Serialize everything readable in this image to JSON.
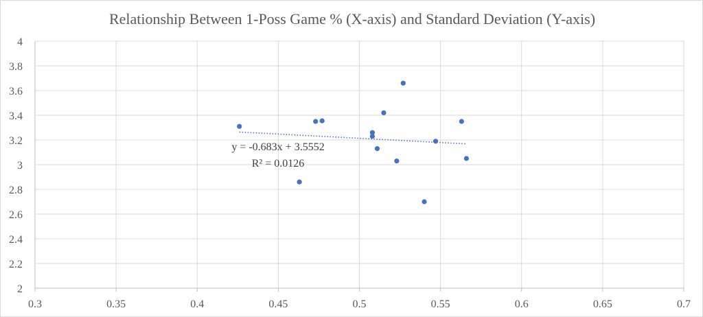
{
  "chart_data": {
    "type": "scatter",
    "title": "Relationship Between 1-Poss Game % (X-axis) and Standard Deviation (Y-axis)",
    "xlabel": "",
    "ylabel": "",
    "xlim": [
      0.3,
      0.7
    ],
    "ylim": [
      2,
      4
    ],
    "x_ticks": [
      "0.3",
      "0.35",
      "0.4",
      "0.45",
      "0.5",
      "0.55",
      "0.6",
      "0.65",
      "0.7"
    ],
    "y_ticks": [
      "2",
      "2.2",
      "2.4",
      "2.6",
      "2.8",
      "3",
      "3.2",
      "3.4",
      "3.6",
      "3.8",
      "4"
    ],
    "grid": true,
    "legend": "none",
    "marker_color": "#4472C4",
    "trendline_color": "#4472C4",
    "series": [
      {
        "points": [
          {
            "x": 0.426,
            "y": 3.31
          },
          {
            "x": 0.463,
            "y": 2.86
          },
          {
            "x": 0.473,
            "y": 3.35
          },
          {
            "x": 0.477,
            "y": 3.355
          },
          {
            "x": 0.508,
            "y": 3.26
          },
          {
            "x": 0.508,
            "y": 3.23
          },
          {
            "x": 0.511,
            "y": 3.13
          },
          {
            "x": 0.515,
            "y": 3.42
          },
          {
            "x": 0.523,
            "y": 3.03
          },
          {
            "x": 0.527,
            "y": 3.66
          },
          {
            "x": 0.54,
            "y": 2.7
          },
          {
            "x": 0.547,
            "y": 3.19
          },
          {
            "x": 0.563,
            "y": 3.35
          },
          {
            "x": 0.566,
            "y": 3.05
          }
        ]
      }
    ],
    "trendline": {
      "type": "linear",
      "slope": -0.683,
      "intercept": 3.5552,
      "x_range": [
        0.426,
        0.566
      ],
      "equation": "y = -0.683x + 3.5552",
      "r_squared": "R² = 0.0126"
    }
  }
}
